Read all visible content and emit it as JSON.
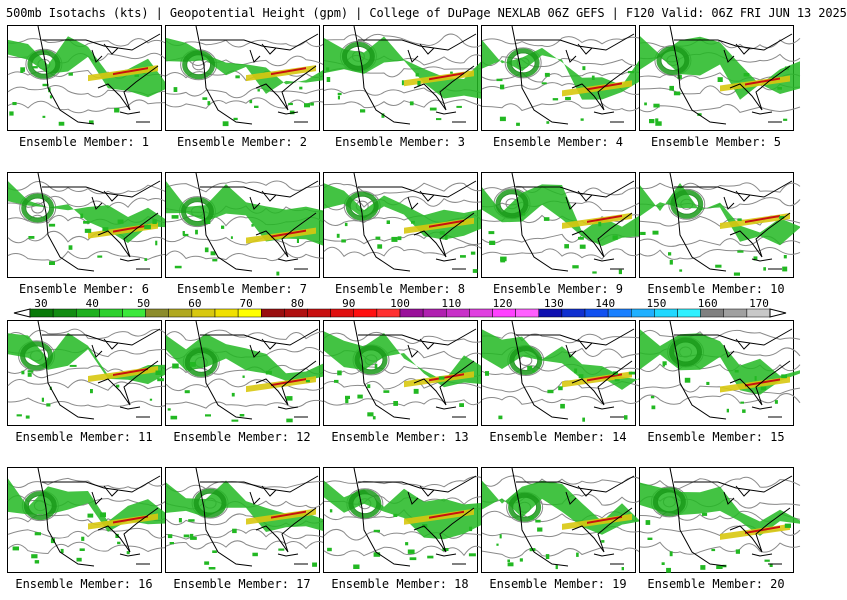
{
  "header": {
    "title": "500mb Isotachs (kts) | Geopotential Height (gpm) | College of DuPage NEXLAB   06Z GEFS | F120 Valid: 06Z FRI JUN 13 2025"
  },
  "panels": [
    {
      "label": "Ensemble Member: 1"
    },
    {
      "label": "Ensemble Member: 2"
    },
    {
      "label": "Ensemble Member: 3"
    },
    {
      "label": "Ensemble Member: 4"
    },
    {
      "label": "Ensemble Member: 5"
    },
    {
      "label": "Ensemble Member: 6"
    },
    {
      "label": "Ensemble Member: 7"
    },
    {
      "label": "Ensemble Member: 8"
    },
    {
      "label": "Ensemble Member: 9"
    },
    {
      "label": "Ensemble Member: 10"
    },
    {
      "label": "Ensemble Member: 11"
    },
    {
      "label": "Ensemble Member: 12"
    },
    {
      "label": "Ensemble Member: 13"
    },
    {
      "label": "Ensemble Member: 14"
    },
    {
      "label": "Ensemble Member: 15"
    },
    {
      "label": "Ensemble Member: 16"
    },
    {
      "label": "Ensemble Member: 17"
    },
    {
      "label": "Ensemble Member: 18"
    },
    {
      "label": "Ensemble Member: 19"
    },
    {
      "label": "Ensemble Member: 20"
    }
  ],
  "colorbar": {
    "labels": [
      "30",
      "40",
      "50",
      "60",
      "70",
      "80",
      "90",
      "100",
      "110",
      "120",
      "130",
      "140",
      "150",
      "160",
      "170"
    ],
    "colors": [
      "#0a7a0a",
      "#138c13",
      "#1fb01f",
      "#2ed02e",
      "#3ce83c",
      "#8c8c2c",
      "#b0a820",
      "#d8c810",
      "#f0e000",
      "#ffff00",
      "#9a1010",
      "#b01010",
      "#c81010",
      "#e01010",
      "#ff1010",
      "#ff3030",
      "#9a109a",
      "#b020b0",
      "#c830c8",
      "#e040e0",
      "#ff40ff",
      "#ff60ff",
      "#1010b0",
      "#1030d0",
      "#1050f0",
      "#1a80ff",
      "#20b0ff",
      "#20d8ff",
      "#30f0ff",
      "#808080",
      "#a0a0a0",
      "#c8c8c8"
    ]
  }
}
